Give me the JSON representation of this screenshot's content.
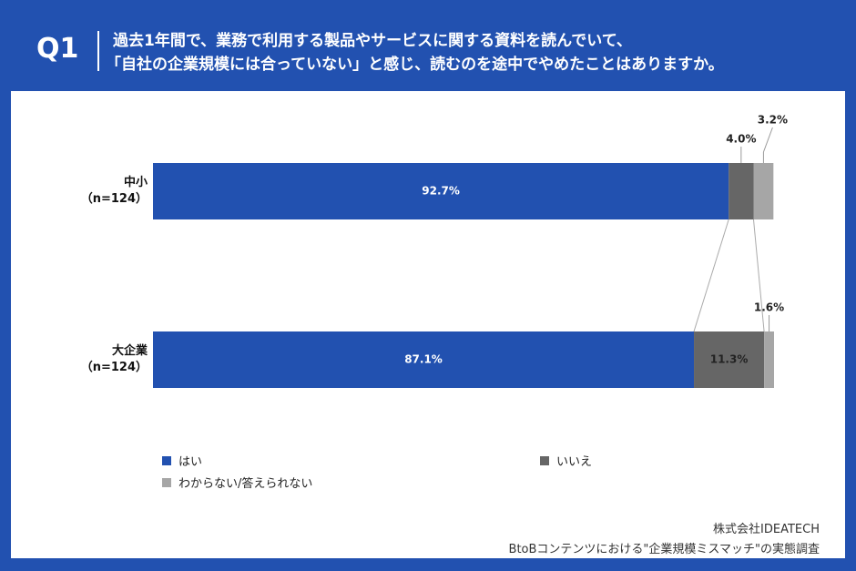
{
  "header": {
    "label": "Q1",
    "question": [
      "過去1年間で、業務で利用する製品やサービスに関する資料を読んでいて、",
      "「自社の企業規模には合っていない」と感じ、読むのを途中でやめたことはありますか。"
    ]
  },
  "chart_data": {
    "type": "stacked-bar-horizontal",
    "categories": [
      "中小\n（n=124）",
      "大企業\n（n=124）"
    ],
    "series": [
      {
        "name": "はい",
        "color": "#2251b0",
        "values": [
          92.7,
          87.1
        ],
        "value_labels": [
          "92.7%",
          "87.1%"
        ]
      },
      {
        "name": "いいえ",
        "color": "#666666",
        "values": [
          4.0,
          11.3
        ],
        "value_labels": [
          "4.0%",
          "11.3%"
        ]
      },
      {
        "name": "わからない/答えられない",
        "color": "#a6a6a6",
        "values": [
          3.2,
          1.6
        ],
        "value_labels": [
          "3.2%",
          "1.6%"
        ]
      }
    ],
    "xlim": [
      0,
      100
    ]
  },
  "footer": {
    "company": "株式会社IDEATECH",
    "survey": "BtoBコンテンツにおける\"企業規模ミスマッチ\"の実態調査"
  }
}
